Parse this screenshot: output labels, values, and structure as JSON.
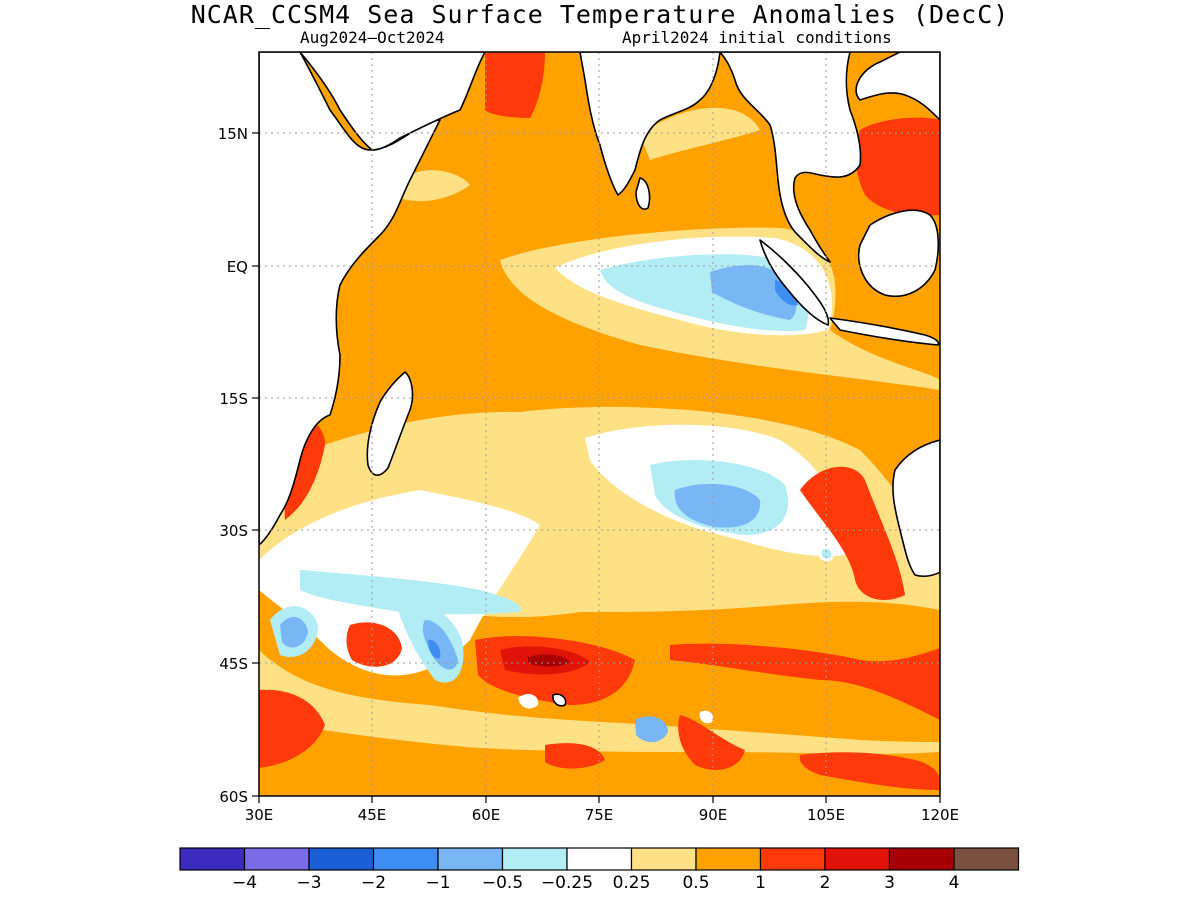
{
  "title": "NCAR_CCSM4 Sea Surface Temperature Anomalies (DecC)",
  "subtitle_left": "Aug2024–Oct2024",
  "subtitle_right": "April2024 initial conditions",
  "axes": {
    "y_ticks": [
      "15N",
      "EQ",
      "15S",
      "30S",
      "45S",
      "60S"
    ],
    "x_ticks": [
      "30E",
      "45E",
      "60E",
      "75E",
      "90E",
      "105E",
      "120E"
    ]
  },
  "colorbar": {
    "labels": [
      "−4",
      "−3",
      "−2",
      "−1",
      "−0.5",
      "−0.25",
      "0.25",
      "0.5",
      "1",
      "2",
      "3",
      "4"
    ],
    "colors": [
      "#3b2bbf",
      "#7b6be8",
      "#1a5fd6",
      "#3d8ef0",
      "#78b6f5",
      "#b2ecf5",
      "#ffffff",
      "#ffe185",
      "#ffa200",
      "#ff3a0a",
      "#e01308",
      "#a60004",
      "#7a5040"
    ]
  }
}
